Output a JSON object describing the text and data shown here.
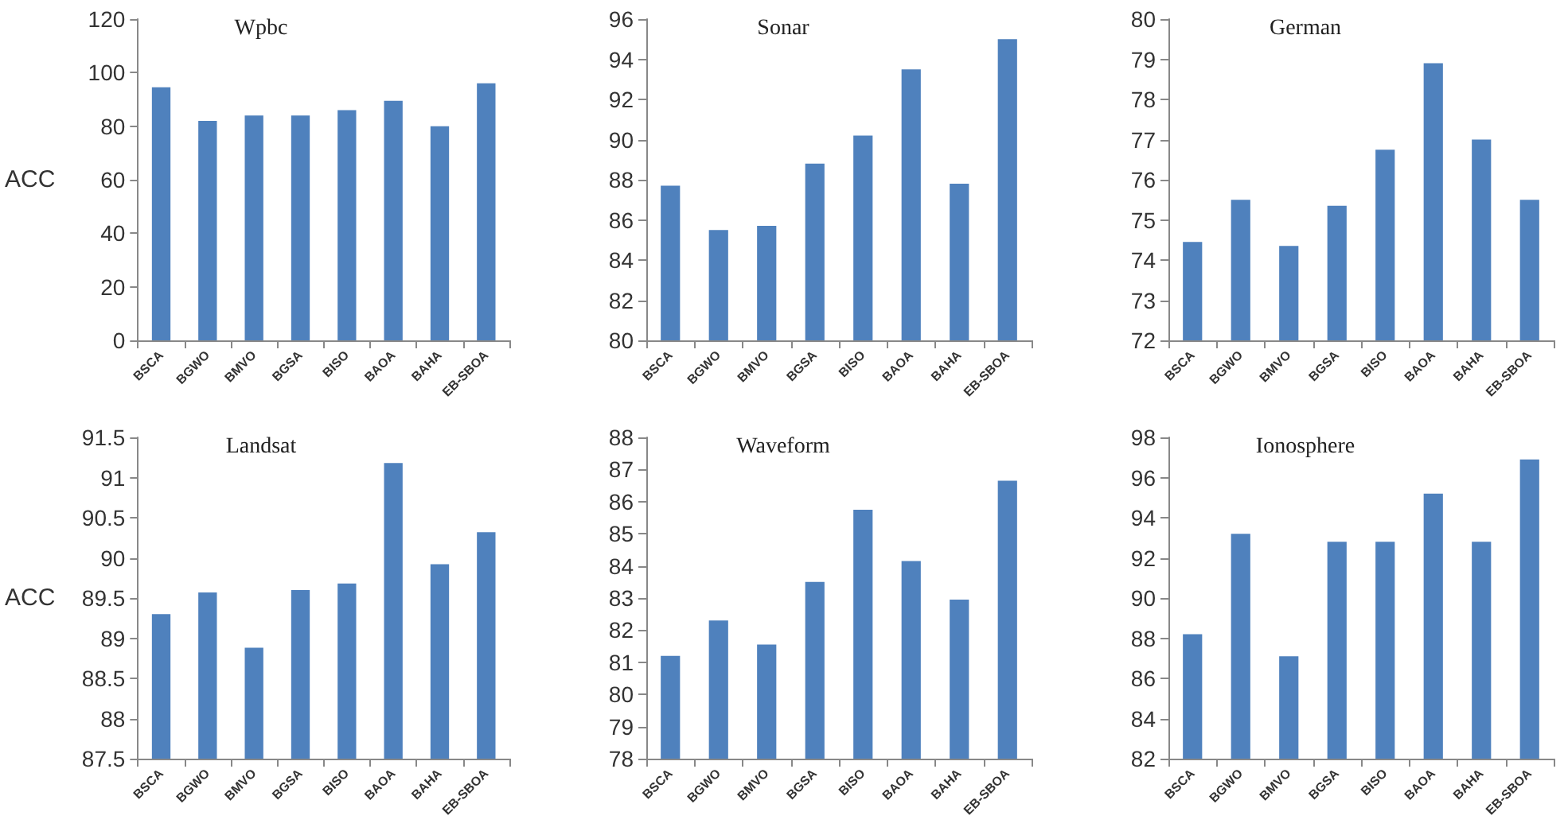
{
  "chart_data": [
    {
      "type": "bar",
      "title": "Wpbc",
      "ylabel": "ACC",
      "categories": [
        "BSCA",
        "BGWO",
        "BMVO",
        "BGSA",
        "BISO",
        "BAOA",
        "BAHA",
        "EB-SBOA"
      ],
      "values": [
        94.5,
        82,
        84,
        84,
        86,
        89.5,
        80,
        96
      ],
      "color": "#4f81bd",
      "ylim": [
        0,
        120
      ],
      "yticks": [
        0,
        20,
        40,
        60,
        80,
        100,
        120
      ],
      "grid": false
    },
    {
      "type": "bar",
      "title": "Sonar",
      "categories": [
        "BSCA",
        "BGWO",
        "BMVO",
        "BGSA",
        "BISO",
        "BAOA",
        "BAHA",
        "EB-SBOA"
      ],
      "values": [
        87.7,
        85.5,
        85.7,
        88.8,
        90.2,
        93.5,
        87.8,
        95
      ],
      "color": "#4f81bd",
      "ylim": [
        80,
        96
      ],
      "yticks": [
        80,
        82,
        84,
        86,
        88,
        90,
        92,
        94,
        96
      ],
      "grid": false
    },
    {
      "type": "bar",
      "title": "German",
      "categories": [
        "BSCA",
        "BGWO",
        "BMVO",
        "BGSA",
        "BISO",
        "BAOA",
        "BAHA",
        "EB-SBOA"
      ],
      "values": [
        74.45,
        75.5,
        74.35,
        75.35,
        76.75,
        78.9,
        77,
        75.5
      ],
      "color": "#4f81bd",
      "ylim": [
        72,
        80
      ],
      "yticks": [
        72,
        73,
        74,
        75,
        76,
        77,
        78,
        79,
        80
      ],
      "grid": false
    },
    {
      "type": "bar",
      "title": "Landsat",
      "ylabel": "ACC",
      "categories": [
        "BSCA",
        "BGWO",
        "BMVO",
        "BGSA",
        "BISO",
        "BAOA",
        "BAHA",
        "EB-SBOA"
      ],
      "values": [
        89.3,
        89.57,
        88.88,
        89.6,
        89.68,
        91.18,
        89.92,
        90.32
      ],
      "color": "#4f81bd",
      "ylim": [
        87.5,
        91.5
      ],
      "yticks": [
        87.5,
        88,
        88.5,
        89,
        89.5,
        90,
        90.5,
        91,
        91.5
      ],
      "grid": false
    },
    {
      "type": "bar",
      "title": "Waveform",
      "categories": [
        "BSCA",
        "BGWO",
        "BMVO",
        "BGSA",
        "BISO",
        "BAOA",
        "BAHA",
        "EB-SBOA"
      ],
      "values": [
        81.2,
        82.3,
        81.55,
        83.5,
        85.75,
        84.15,
        82.95,
        86.65
      ],
      "color": "#4f81bd",
      "ylim": [
        78,
        88
      ],
      "yticks": [
        78,
        79,
        80,
        81,
        82,
        83,
        84,
        85,
        86,
        87,
        88
      ],
      "grid": false
    },
    {
      "type": "bar",
      "title": "Ionosphere",
      "categories": [
        "BSCA",
        "BGWO",
        "BMVO",
        "BGSA",
        "BISO",
        "BAOA",
        "BAHA",
        "EB-SBOA"
      ],
      "values": [
        88.2,
        93.2,
        87.1,
        92.8,
        92.8,
        95.2,
        92.8,
        96.9
      ],
      "color": "#4f81bd",
      "ylim": [
        82,
        98
      ],
      "yticks": [
        82,
        84,
        86,
        88,
        90,
        92,
        94,
        96,
        98
      ],
      "grid": false
    }
  ]
}
